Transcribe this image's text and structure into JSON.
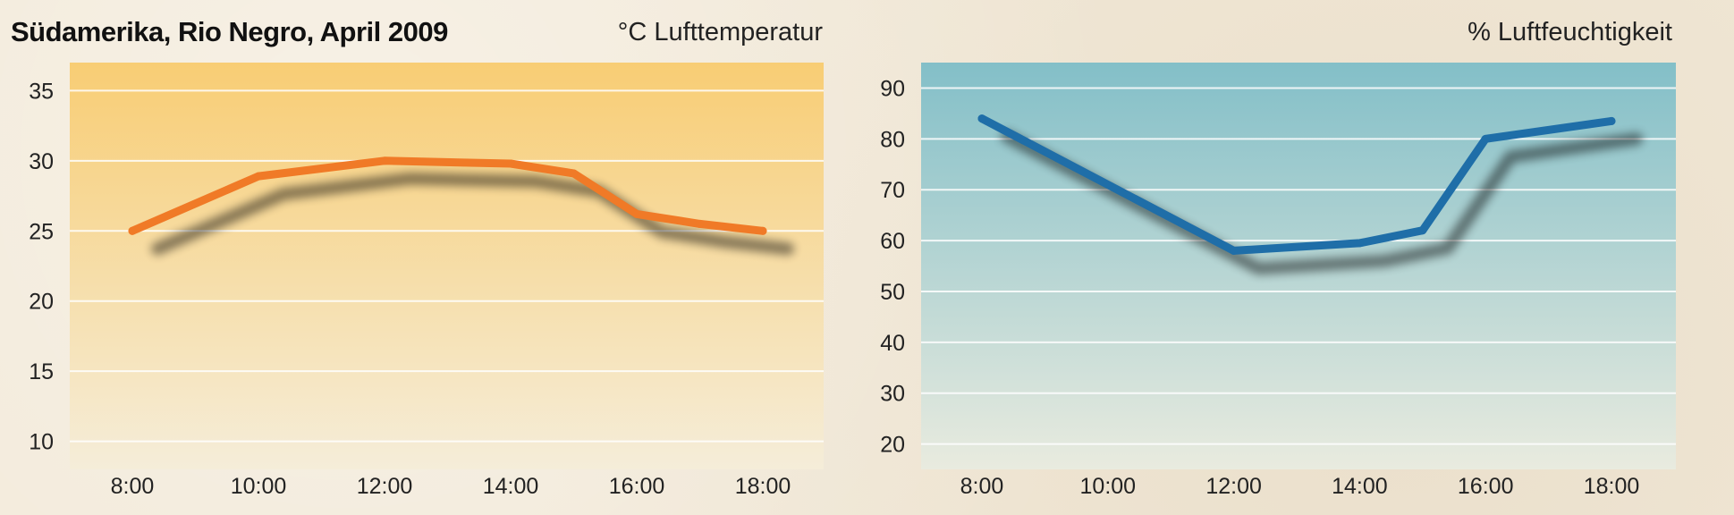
{
  "header": {
    "title": "Südamerika, Rio Negro, April 2009"
  },
  "chart_data": [
    {
      "type": "line",
      "title": "°C  Lufttemperatur",
      "ylabel": "°C",
      "xlabel": "",
      "x": [
        "8:00",
        "10:00",
        "12:00",
        "14:00",
        "15:00",
        "16:00",
        "17:00",
        "18:00"
      ],
      "x_ticks": [
        "8:00",
        "10:00",
        "12:00",
        "14:00",
        "16:00",
        "18:00"
      ],
      "series": [
        {
          "values": [
            25.0,
            28.9,
            30.0,
            29.8,
            29.1,
            26.2,
            25.5,
            25.0
          ],
          "color": "#f07a27"
        }
      ],
      "yticks": [
        10,
        15,
        20,
        25,
        30,
        35
      ],
      "ylim": [
        8,
        37
      ],
      "grid": true,
      "background": {
        "top": "#f8cd74",
        "bottom": "#f5edd9"
      }
    },
    {
      "type": "line",
      "title": "%  Luftfeuchtigkeit",
      "ylabel": "%",
      "xlabel": "",
      "x": [
        "8:00",
        "12:00",
        "14:00",
        "15:00",
        "16:00",
        "18:00"
      ],
      "x_ticks": [
        "8:00",
        "10:00",
        "12:00",
        "14:00",
        "16:00",
        "18:00"
      ],
      "series": [
        {
          "values": [
            84,
            58,
            59.5,
            62,
            80,
            83.5
          ],
          "color": "#1f6ea8"
        }
      ],
      "yticks": [
        20,
        30,
        40,
        50,
        60,
        70,
        80,
        90
      ],
      "ylim": [
        15,
        95
      ],
      "grid": true,
      "background": {
        "top": "#83bfc8",
        "bottom": "#e9ebdf"
      }
    }
  ]
}
